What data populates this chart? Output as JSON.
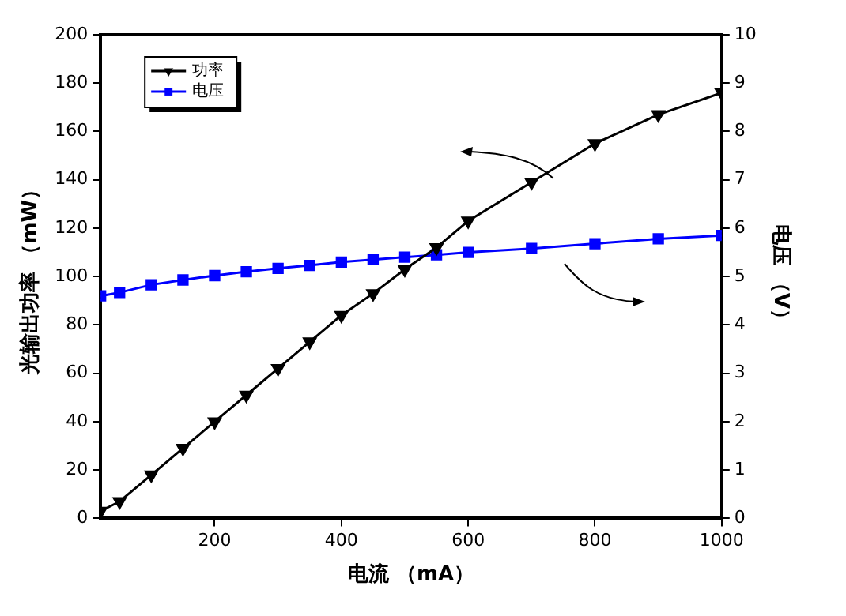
{
  "chart_data": {
    "type": "line",
    "xlabel": "电流 （mA）",
    "ylabel": "光输出功率 （mW）",
    "y2label": "电压 （V）",
    "x": [
      20,
      50,
      100,
      150,
      200,
      250,
      300,
      350,
      400,
      450,
      500,
      550,
      600,
      700,
      800,
      900,
      1000
    ],
    "series": [
      {
        "name": "功率",
        "color": "#000000",
        "marker": "triangle",
        "values": [
          3,
          7,
          18,
          29,
          40,
          51,
          62,
          73,
          84,
          93,
          103,
          112,
          123,
          139,
          155,
          167,
          176
        ]
      },
      {
        "name": "电压",
        "color": "#0000ff",
        "marker": "square",
        "axis": "y2",
        "values": [
          4.6,
          4.67,
          4.83,
          4.93,
          5.02,
          5.1,
          5.17,
          5.23,
          5.3,
          5.35,
          5.4,
          5.45,
          5.5,
          5.58,
          5.68,
          5.78,
          5.85
        ]
      }
    ],
    "xlim": [
      20,
      1000
    ],
    "xticks": [
      200,
      400,
      600,
      800,
      1000
    ],
    "ylim": [
      0,
      200
    ],
    "yticks": [
      0,
      20,
      40,
      60,
      80,
      100,
      120,
      140,
      160,
      180,
      200
    ],
    "y2lim": [
      0,
      10
    ],
    "y2ticks": [
      0,
      1,
      2,
      3,
      4,
      5,
      6,
      7,
      8,
      9,
      10
    ],
    "legend": "top left",
    "grid": false
  }
}
